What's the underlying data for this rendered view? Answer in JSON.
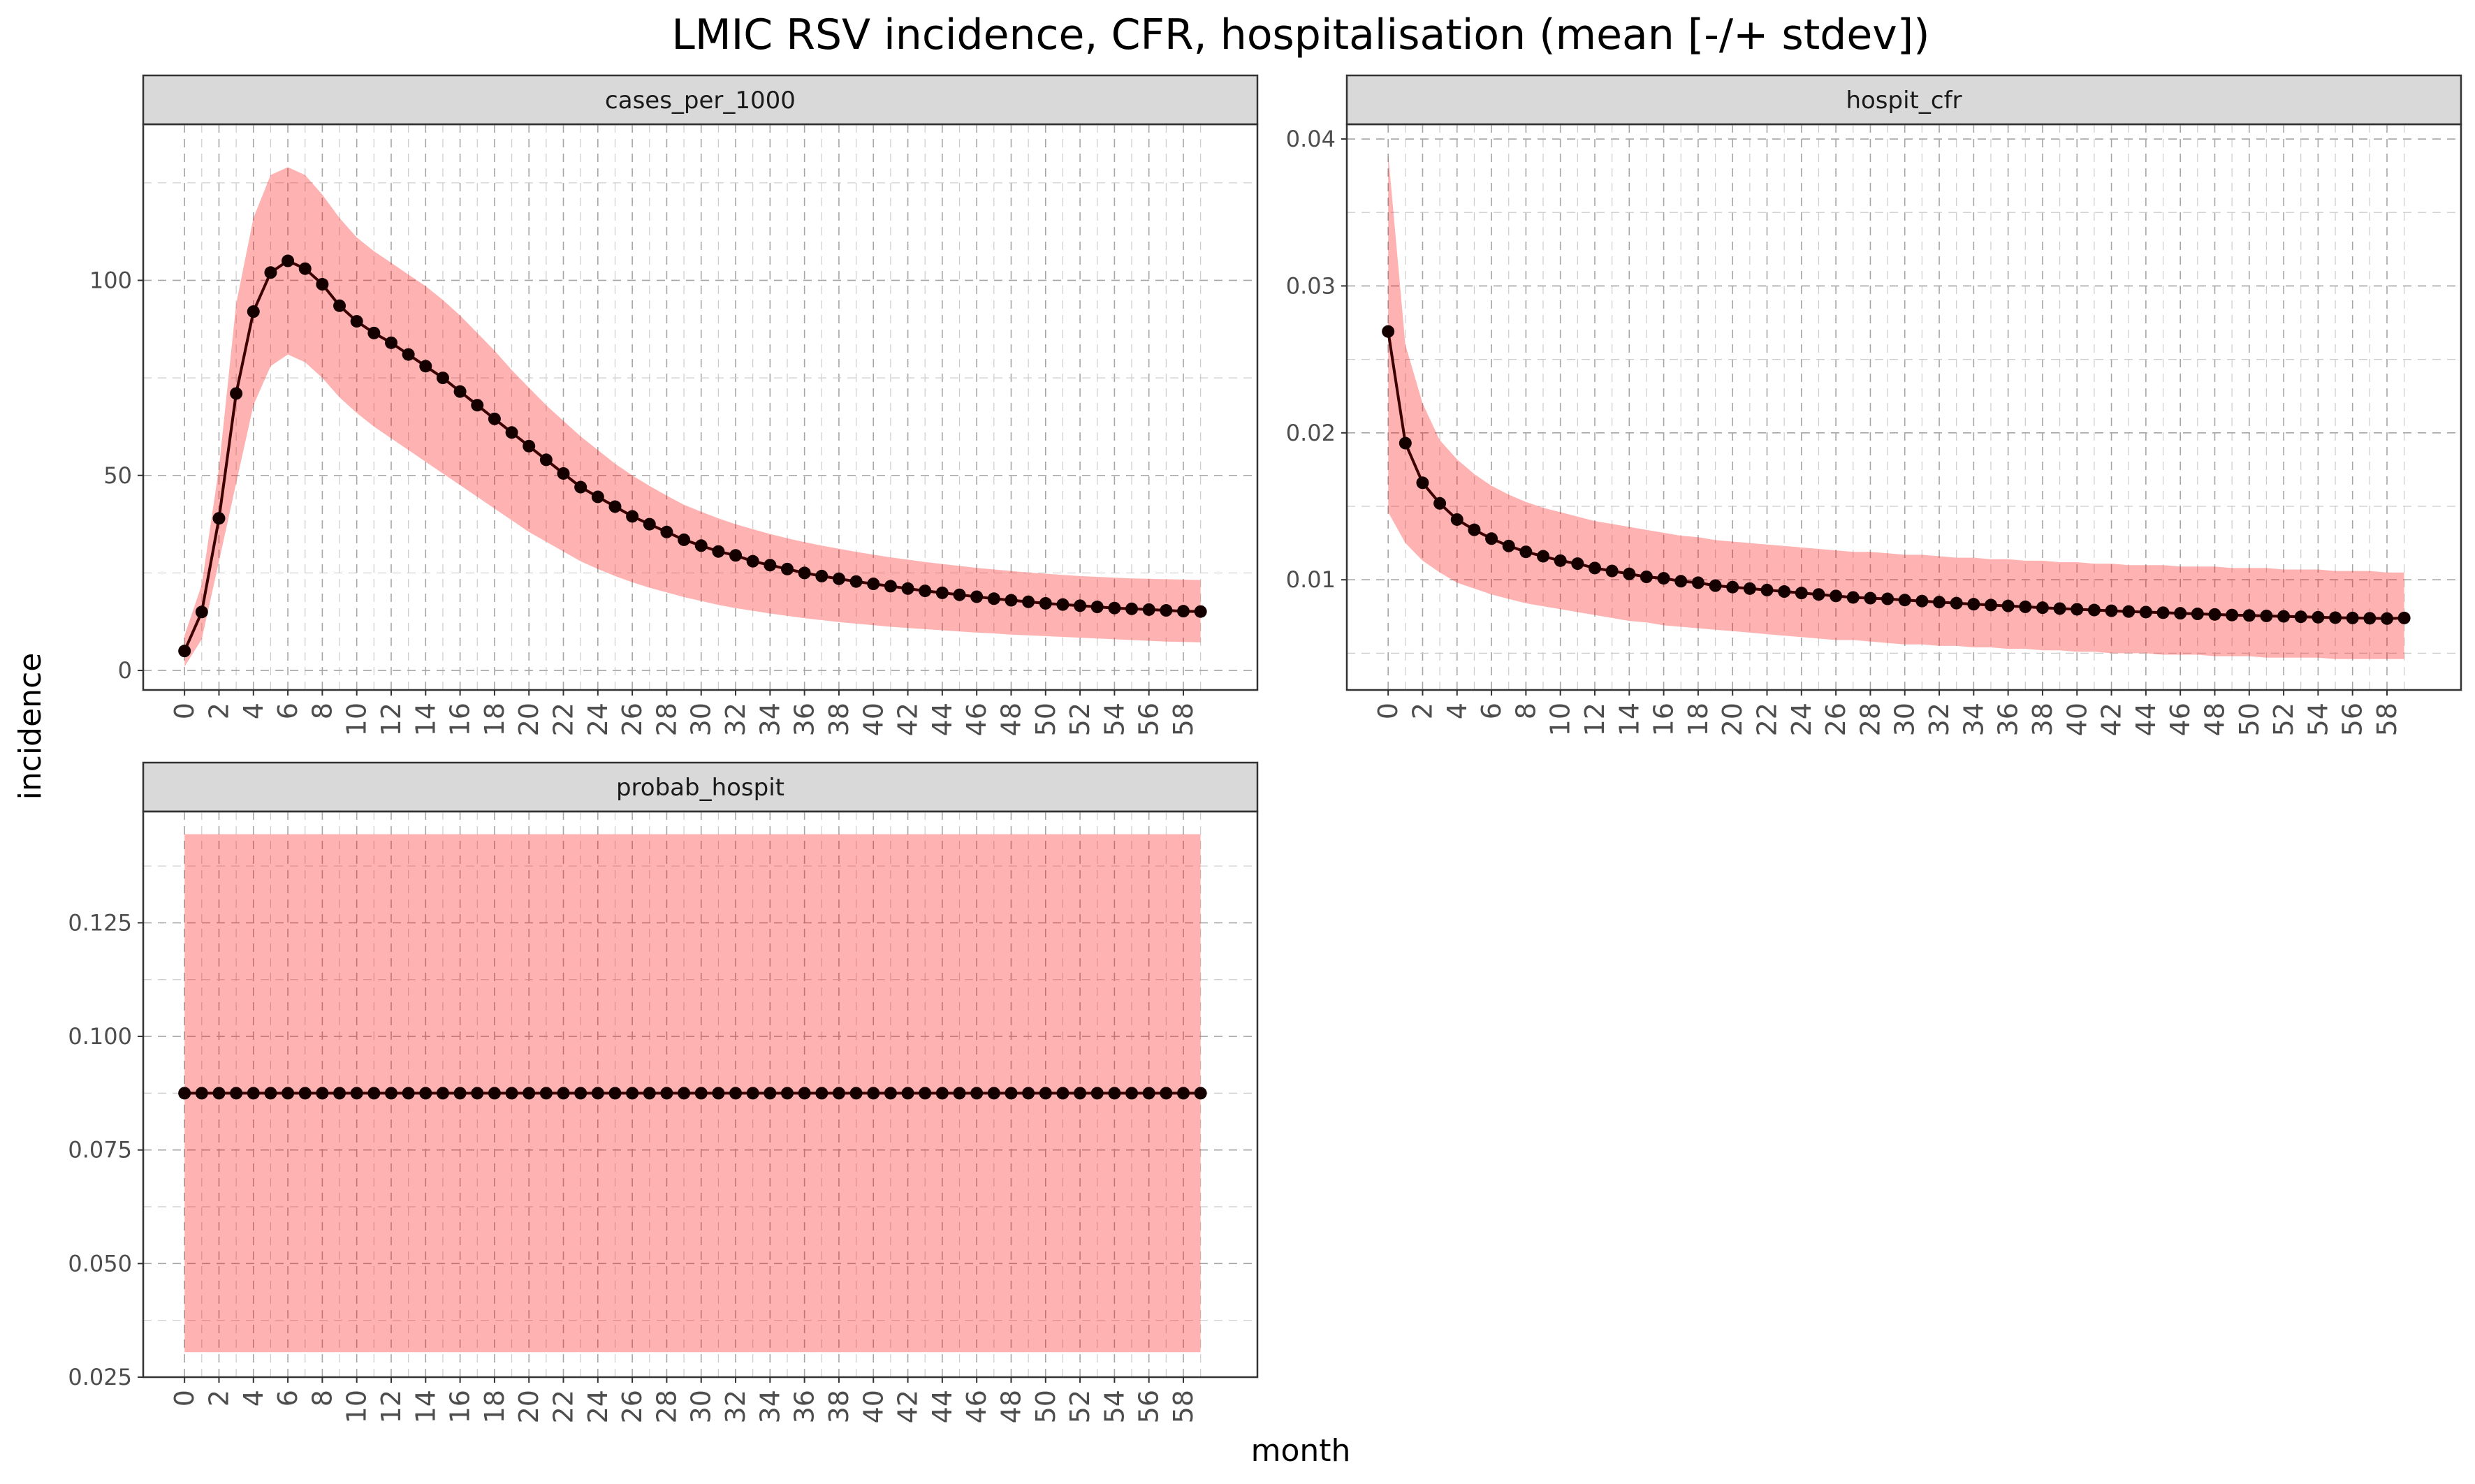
{
  "figure": {
    "title": "LMIC RSV incidence, CFR, hospitalisation (mean [-/+ stdev])",
    "xlabel": "month",
    "ylabel": "incidence"
  },
  "colors": {
    "band": "#ff0000",
    "line": "#3d0000",
    "point": "#150000",
    "strip": "#d9d9d9"
  },
  "chart_data": [
    {
      "type": "line",
      "facet": "cases_per_1000",
      "x_range": [
        0,
        59
      ],
      "xlim": [
        -2.4,
        62.3
      ],
      "x_ticks": [
        0,
        2,
        4,
        6,
        8,
        10,
        12,
        14,
        16,
        18,
        20,
        22,
        24,
        26,
        28,
        30,
        32,
        34,
        36,
        38,
        40,
        42,
        44,
        46,
        48,
        50,
        52,
        54,
        56,
        58
      ],
      "ylim": [
        -5,
        140
      ],
      "y_ticks": [
        0,
        50,
        100
      ],
      "mean": [
        5,
        15,
        39,
        71,
        92,
        102,
        105,
        103,
        99,
        93.5,
        89.5,
        86.5,
        84,
        81,
        78,
        75,
        71.5,
        68,
        64.5,
        61,
        57.5,
        54,
        50.5,
        47,
        44.5,
        42,
        39.5,
        37.5,
        35.5,
        33.5,
        32,
        30.5,
        29.5,
        28,
        27,
        26,
        25,
        24.2,
        23.5,
        22.8,
        22.2,
        21.6,
        21,
        20.4,
        19.9,
        19.4,
        18.9,
        18.4,
        18,
        17.6,
        17.2,
        16.9,
        16.6,
        16.3,
        16.0,
        15.8,
        15.6,
        15.4,
        15.2,
        15.1
      ],
      "lower": [
        1,
        8,
        28,
        48,
        68,
        78,
        81,
        79,
        75,
        70,
        66,
        62.5,
        59.5,
        56.5,
        53.5,
        50.5,
        47.5,
        44.5,
        41.5,
        38.5,
        35.5,
        33,
        30.5,
        28,
        26,
        24.2,
        22.6,
        21.2,
        20,
        18.8,
        17.8,
        16.8,
        16,
        15.3,
        14.6,
        14,
        13.4,
        12.9,
        12.4,
        12,
        11.6,
        11.2,
        10.9,
        10.6,
        10.3,
        10,
        9.7,
        9.5,
        9.2,
        9,
        8.8,
        8.6,
        8.4,
        8.2,
        8.0,
        7.8,
        7.6,
        7.4,
        7.3,
        7.2
      ],
      "upper": [
        9,
        22,
        52,
        94,
        116,
        127,
        129,
        127,
        122,
        116,
        111,
        107.5,
        104.5,
        101.5,
        98.5,
        95,
        91,
        86.5,
        82,
        77,
        72.5,
        68,
        64,
        60,
        56.5,
        53,
        50,
        47.3,
        44.8,
        42.5,
        40.7,
        39,
        37.5,
        36.2,
        35,
        33.9,
        32.9,
        32,
        31.2,
        30.4,
        29.7,
        29,
        28.4,
        27.8,
        27.3,
        26.8,
        26.3,
        25.9,
        25.5,
        25.1,
        24.8,
        24.5,
        24.2,
        24.0,
        23.8,
        23.6,
        23.5,
        23.4,
        23.3,
        23.2
      ]
    },
    {
      "type": "line",
      "facet": "hospit_cfr",
      "x_range": [
        0,
        59
      ],
      "xlim": [
        -2.4,
        62.3
      ],
      "x_ticks": [
        0,
        2,
        4,
        6,
        8,
        10,
        12,
        14,
        16,
        18,
        20,
        22,
        24,
        26,
        28,
        30,
        32,
        34,
        36,
        38,
        40,
        42,
        44,
        46,
        48,
        50,
        52,
        54,
        56,
        58
      ],
      "ylim": [
        0.0025,
        0.041
      ],
      "y_ticks": [
        0.01,
        0.02,
        0.03,
        0.04
      ],
      "mean": [
        0.0269,
        0.0193,
        0.0166,
        0.0152,
        0.0141,
        0.0134,
        0.0128,
        0.0123,
        0.0119,
        0.0116,
        0.0113,
        0.0111,
        0.0108,
        0.0106,
        0.0104,
        0.0102,
        0.0101,
        0.0099,
        0.0098,
        0.0096,
        0.0095,
        0.0094,
        0.0093,
        0.0092,
        0.0091,
        0.009,
        0.0089,
        0.0088,
        0.00875,
        0.0087,
        0.00862,
        0.00855,
        0.00848,
        0.00841,
        0.00834,
        0.00828,
        0.00822,
        0.00816,
        0.0081,
        0.00804,
        0.00799,
        0.00794,
        0.00789,
        0.00784,
        0.0078,
        0.00776,
        0.00772,
        0.00768,
        0.00764,
        0.0076,
        0.00757,
        0.00754,
        0.00751,
        0.00748,
        0.00745,
        0.00742,
        0.0074,
        0.00738,
        0.00736,
        0.0074
      ],
      "lower": [
        0.0146,
        0.0125,
        0.0113,
        0.0105,
        0.0098,
        0.0094,
        0.009,
        0.0087,
        0.0084,
        0.0082,
        0.008,
        0.0078,
        0.0076,
        0.0074,
        0.0072,
        0.0071,
        0.0069,
        0.0068,
        0.0067,
        0.0066,
        0.0065,
        0.0064,
        0.0063,
        0.0062,
        0.0061,
        0.006,
        0.0059,
        0.0059,
        0.0058,
        0.0057,
        0.0056,
        0.0056,
        0.0055,
        0.0055,
        0.0054,
        0.0054,
        0.0053,
        0.0053,
        0.0052,
        0.0052,
        0.0051,
        0.0051,
        0.005,
        0.005,
        0.005,
        0.0049,
        0.0049,
        0.0049,
        0.0048,
        0.0048,
        0.0048,
        0.0047,
        0.0047,
        0.0047,
        0.0047,
        0.0046,
        0.0046,
        0.0046,
        0.0046,
        0.0046
      ],
      "upper": [
        0.039,
        0.026,
        0.022,
        0.0195,
        0.0182,
        0.0172,
        0.0164,
        0.0158,
        0.0153,
        0.0149,
        0.0146,
        0.0143,
        0.014,
        0.0138,
        0.0136,
        0.0134,
        0.0132,
        0.013,
        0.0129,
        0.0127,
        0.0126,
        0.0125,
        0.0124,
        0.0123,
        0.0122,
        0.0121,
        0.012,
        0.0119,
        0.0119,
        0.0118,
        0.0117,
        0.0117,
        0.0116,
        0.0115,
        0.0115,
        0.0114,
        0.0114,
        0.0113,
        0.0113,
        0.0112,
        0.0112,
        0.0111,
        0.0111,
        0.011,
        0.011,
        0.011,
        0.0109,
        0.0109,
        0.0109,
        0.0108,
        0.0108,
        0.0108,
        0.0107,
        0.0107,
        0.0107,
        0.0106,
        0.0106,
        0.0106,
        0.0105,
        0.0105
      ]
    },
    {
      "type": "line",
      "facet": "probab_hospit",
      "x_range": [
        0,
        59
      ],
      "xlim": [
        -2.4,
        62.3
      ],
      "x_ticks": [
        0,
        2,
        4,
        6,
        8,
        10,
        12,
        14,
        16,
        18,
        20,
        22,
        24,
        26,
        28,
        30,
        32,
        34,
        36,
        38,
        40,
        42,
        44,
        46,
        48,
        50,
        52,
        54,
        56,
        58
      ],
      "ylim": [
        0.025,
        0.1495
      ],
      "y_ticks": [
        "0.025",
        "0.050",
        "0.075",
        "0.100",
        "0.125"
      ],
      "mean_constant": 0.0875,
      "lower_constant": 0.0305,
      "upper_constant": 0.1445
    }
  ]
}
